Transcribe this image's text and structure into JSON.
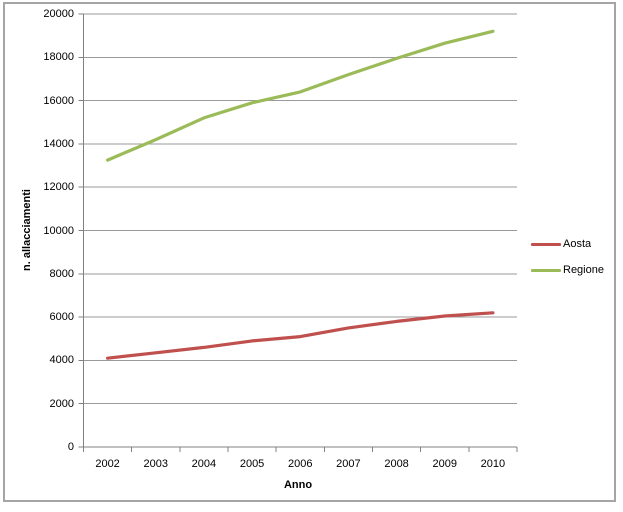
{
  "chart_data": {
    "type": "line",
    "title": "",
    "xlabel": "Anno",
    "ylabel": "n. allacciamenti",
    "categories": [
      "2002",
      "2003",
      "2004",
      "2005",
      "2006",
      "2007",
      "2008",
      "2009",
      "2010"
    ],
    "series": [
      {
        "name": "Aosta",
        "color": "#C0504D",
        "values": [
          4100,
          4350,
          4600,
          4900,
          5100,
          5500,
          5800,
          6050,
          6200
        ]
      },
      {
        "name": "Regione",
        "color": "#9BBB59",
        "values": [
          13250,
          14200,
          15200,
          15900,
          16400,
          17200,
          17950,
          18650,
          19200
        ]
      }
    ],
    "ylim": [
      0,
      20000
    ],
    "yticks": [
      "0",
      "2000",
      "4000",
      "6000",
      "8000",
      "10000",
      "12000",
      "14000",
      "16000",
      "18000",
      "20000"
    ],
    "grid": "horizontal-only",
    "legend_position": "right",
    "colors": {
      "gridline": "#9a9a9a",
      "axis": "#808080",
      "text": "#000000",
      "frame_border": "#a5a5a5",
      "background": "#ffffff"
    }
  }
}
